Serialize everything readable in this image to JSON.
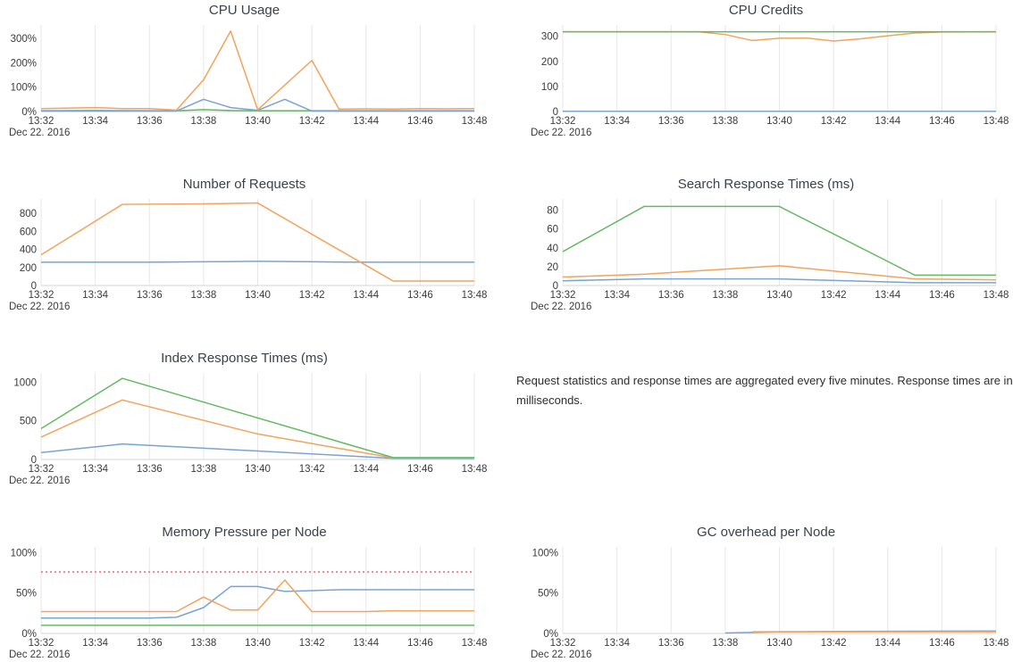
{
  "note": {
    "text": "Request statistics and response times are aggregated every five minutes. Response times are in milliseconds."
  },
  "x_axis": {
    "tick_minutes": [
      0,
      2,
      4,
      6,
      8,
      10,
      12,
      14,
      16
    ],
    "tick_labels": [
      "13:32",
      "13:34",
      "13:36",
      "13:38",
      "13:40",
      "13:42",
      "13:44",
      "13:46",
      "13:48"
    ],
    "date_label": "Dec 22. 2016",
    "range_minutes": 16
  },
  "palette": {
    "blue": "#7aa3d4",
    "orange": "#f2a35c",
    "green": "#63ba63",
    "red": "#ea8a95",
    "grid": "#e7e7e7",
    "axis": "#d6d6d6"
  },
  "chart_data": [
    {
      "type": "line",
      "title": "CPU Usage",
      "ylim": [
        0,
        355
      ],
      "ytick_values": [
        0,
        100,
        200,
        300
      ],
      "ytick_labels": [
        "0%",
        "100%",
        "200%",
        "300%"
      ],
      "series": [
        {
          "name": "green",
          "color": "green",
          "points": [
            [
              0,
              3
            ],
            [
              2,
              4
            ],
            [
              4,
              3
            ],
            [
              5,
              3
            ],
            [
              6,
              8
            ],
            [
              7,
              4
            ],
            [
              8,
              3
            ],
            [
              10,
              3
            ],
            [
              12,
              3
            ],
            [
              14,
              3
            ],
            [
              16,
              3
            ]
          ]
        },
        {
          "name": "blue",
          "color": "blue",
          "points": [
            [
              0,
              2
            ],
            [
              4,
              2
            ],
            [
              5,
              2
            ],
            [
              6,
              50
            ],
            [
              7,
              16
            ],
            [
              8,
              5
            ],
            [
              9,
              50
            ],
            [
              10,
              2
            ],
            [
              12,
              2
            ],
            [
              14,
              2
            ],
            [
              16,
              2
            ]
          ]
        },
        {
          "name": "orange",
          "color": "orange",
          "points": [
            [
              0,
              12
            ],
            [
              2,
              16
            ],
            [
              3,
              12
            ],
            [
              4,
              12
            ],
            [
              5,
              6
            ],
            [
              6,
              130
            ],
            [
              7,
              330
            ],
            [
              8,
              7
            ],
            [
              10,
              210
            ],
            [
              11,
              10
            ],
            [
              12,
              11
            ],
            [
              13,
              10
            ],
            [
              14,
              12
            ],
            [
              15,
              11
            ],
            [
              16,
              12
            ]
          ]
        }
      ]
    },
    {
      "type": "line",
      "title": "CPU Credits",
      "ylim": [
        0,
        345
      ],
      "ytick_values": [
        0,
        100,
        200,
        300
      ],
      "ytick_labels": [
        "0",
        "100",
        "200",
        "300"
      ],
      "series": [
        {
          "name": "blue",
          "color": "blue",
          "points": [
            [
              0,
              1
            ],
            [
              16,
              1
            ]
          ]
        },
        {
          "name": "orange",
          "color": "orange",
          "points": [
            [
              0,
              318
            ],
            [
              5,
              318
            ],
            [
              6,
              307
            ],
            [
              7,
              283
            ],
            [
              8,
              292
            ],
            [
              9,
              293
            ],
            [
              10,
              281
            ],
            [
              11,
              290
            ],
            [
              12,
              302
            ],
            [
              13,
              313
            ],
            [
              14,
              317
            ],
            [
              16,
              318
            ]
          ]
        },
        {
          "name": "green",
          "color": "green",
          "points": [
            [
              0,
              318
            ],
            [
              16,
              318
            ]
          ]
        }
      ]
    },
    {
      "type": "line",
      "title": "Number of Requests",
      "ylim": [
        0,
        960
      ],
      "ytick_values": [
        0,
        200,
        400,
        600,
        800
      ],
      "ytick_labels": [
        "0",
        "200",
        "400",
        "600",
        "800"
      ],
      "series": [
        {
          "name": "blue",
          "color": "blue",
          "points": [
            [
              0,
              258
            ],
            [
              4,
              258
            ],
            [
              6,
              263
            ],
            [
              8,
              268
            ],
            [
              10,
              263
            ],
            [
              12,
              258
            ],
            [
              16,
              258
            ]
          ]
        },
        {
          "name": "orange",
          "color": "orange",
          "points": [
            [
              0,
              340
            ],
            [
              3,
              900
            ],
            [
              6,
              905
            ],
            [
              8,
              915
            ],
            [
              13,
              50
            ],
            [
              16,
              50
            ]
          ]
        }
      ]
    },
    {
      "type": "line",
      "title": "Search Response Times (ms)",
      "ylim": [
        0,
        92
      ],
      "ytick_values": [
        0,
        20,
        40,
        60,
        80
      ],
      "ytick_labels": [
        "0",
        "20",
        "40",
        "60",
        "80"
      ],
      "series": [
        {
          "name": "blue",
          "color": "blue",
          "points": [
            [
              0,
              5
            ],
            [
              3,
              7
            ],
            [
              8,
              7
            ],
            [
              13,
              3
            ],
            [
              16,
              3
            ]
          ]
        },
        {
          "name": "orange",
          "color": "orange",
          "points": [
            [
              0,
              9
            ],
            [
              3,
              12
            ],
            [
              8,
              21
            ],
            [
              13,
              7
            ],
            [
              16,
              6
            ]
          ]
        },
        {
          "name": "green",
          "color": "green",
          "points": [
            [
              0,
              36
            ],
            [
              3,
              84
            ],
            [
              8,
              84
            ],
            [
              13,
              11
            ],
            [
              16,
              11
            ]
          ]
        }
      ]
    },
    {
      "type": "line",
      "title": "Index Response Times (ms)",
      "ylim": [
        0,
        1120
      ],
      "ytick_values": [
        0,
        500,
        1000
      ],
      "ytick_labels": [
        "0",
        "500",
        "1000"
      ],
      "series": [
        {
          "name": "blue",
          "color": "blue",
          "points": [
            [
              0,
              90
            ],
            [
              3,
              200
            ],
            [
              8,
              110
            ],
            [
              13,
              15
            ],
            [
              16,
              15
            ]
          ]
        },
        {
          "name": "orange",
          "color": "orange",
          "points": [
            [
              0,
              290
            ],
            [
              3,
              770
            ],
            [
              8,
              330
            ],
            [
              13,
              20
            ],
            [
              16,
              20
            ]
          ]
        },
        {
          "name": "green",
          "color": "green",
          "points": [
            [
              0,
              400
            ],
            [
              3,
              1050
            ],
            [
              13,
              25
            ],
            [
              16,
              25
            ]
          ]
        }
      ]
    },
    {
      "type": "line",
      "title": "Memory Pressure per Node",
      "ylim": [
        0,
        107
      ],
      "ytick_values": [
        0,
        50,
        100
      ],
      "ytick_labels": [
        "0%",
        "50%",
        "100%"
      ],
      "threshold": {
        "value": 76,
        "color": "red",
        "style": "dashed"
      },
      "series": [
        {
          "name": "green",
          "color": "green",
          "points": [
            [
              0,
              10
            ],
            [
              16,
              10
            ]
          ]
        },
        {
          "name": "blue",
          "color": "blue",
          "points": [
            [
              0,
              19
            ],
            [
              4,
              19
            ],
            [
              5,
              20
            ],
            [
              6,
              32
            ],
            [
              7,
              58
            ],
            [
              8,
              58
            ],
            [
              9,
              52
            ],
            [
              10,
              53
            ],
            [
              11,
              54
            ],
            [
              16,
              54
            ]
          ]
        },
        {
          "name": "orange",
          "color": "orange",
          "points": [
            [
              0,
              27
            ],
            [
              5,
              27
            ],
            [
              6,
              45
            ],
            [
              7,
              29
            ],
            [
              8,
              29
            ],
            [
              9,
              66
            ],
            [
              10,
              27
            ],
            [
              12,
              27
            ],
            [
              13,
              28
            ],
            [
              16,
              28
            ]
          ]
        }
      ]
    },
    {
      "type": "line",
      "title": "GC overhead per Node",
      "ylim": [
        0,
        107
      ],
      "ytick_values": [
        0,
        50,
        100
      ],
      "ytick_labels": [
        "0%",
        "50%",
        "100%"
      ],
      "series": [
        {
          "name": "blue",
          "color": "blue",
          "points": [
            [
              6,
              0.5
            ],
            [
              8,
              2
            ],
            [
              10,
              2.5
            ],
            [
              16,
              3
            ]
          ]
        },
        {
          "name": "orange",
          "color": "orange",
          "points": [
            [
              7,
              2
            ],
            [
              10,
              2
            ],
            [
              16,
              2
            ]
          ]
        }
      ]
    }
  ]
}
